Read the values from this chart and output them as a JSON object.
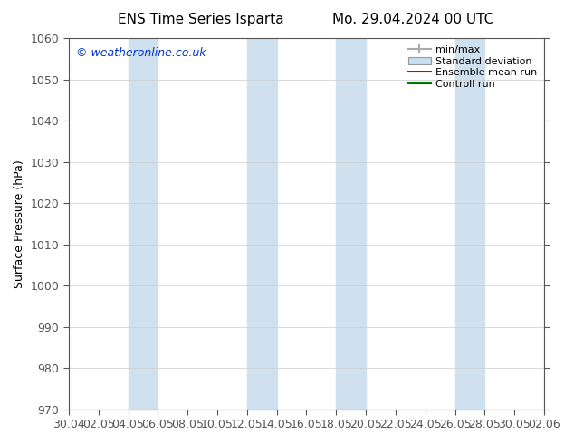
{
  "title_left": "ENS Time Series Isparta",
  "title_right": "Mo. 29.04.2024 00 UTC",
  "ylabel": "Surface Pressure (hPa)",
  "ylim": [
    970,
    1060
  ],
  "yticks": [
    970,
    980,
    990,
    1000,
    1010,
    1020,
    1030,
    1040,
    1050,
    1060
  ],
  "x_tick_labels": [
    "30.04",
    "02.05",
    "04.05",
    "06.05",
    "08.05",
    "10.05",
    "12.05",
    "14.05",
    "16.05",
    "18.05",
    "20.05",
    "22.05",
    "24.05",
    "26.05",
    "28.05",
    "30.05",
    "02.06"
  ],
  "n_ticks": 17,
  "xlim": [
    0,
    16
  ],
  "blue_band_starts": [
    2,
    6,
    9,
    13,
    16
  ],
  "blue_band_ends": [
    3,
    7,
    10,
    14,
    17
  ],
  "band_color": "#cfe0ef",
  "copyright_text": "© weatheronline.co.uk",
  "copyright_color": "#0033cc",
  "legend_labels": [
    "min/max",
    "Standard deviation",
    "Ensemble mean run",
    "Controll run"
  ],
  "background_color": "#ffffff",
  "font_size": 9,
  "title_font_size": 11,
  "axis_color": "#555555"
}
